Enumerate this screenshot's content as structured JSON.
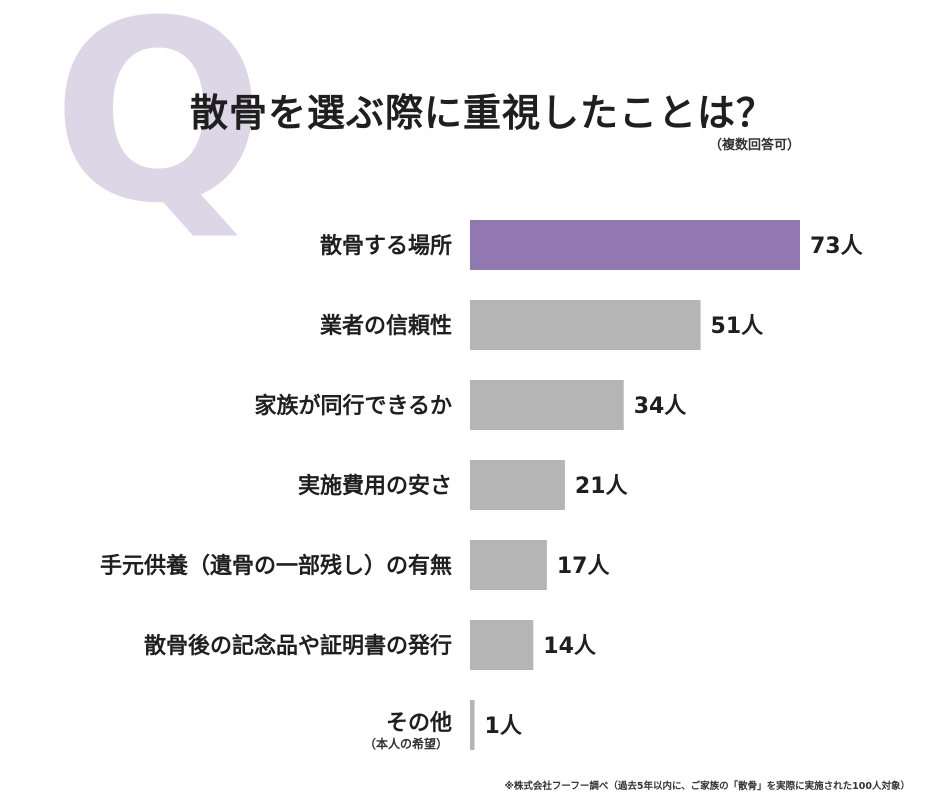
{
  "header": {
    "q_mark": "Q",
    "title": "散骨を選ぶ際に重視したことは？",
    "subtitle": "（複数回答可）"
  },
  "footnote": "※株式会社フーフー調べ（過去5年以内に、ご家族の「散骨」を実際に実施された100人対象）",
  "colors": {
    "highlight": "#9278b1",
    "bar": "#b5b5b5",
    "q_mark": "#dcd6e6"
  },
  "chart_data": {
    "type": "bar",
    "orientation": "horizontal",
    "title": "散骨を選ぶ際に重視したことは？",
    "categories": [
      "散骨する場所",
      "業者の信頼性",
      "家族が同行できるか",
      "実施費用の安さ",
      "手元供養（遺骨の一部残し）の有無",
      "散骨後の記念品や証明書の発行",
      "その他"
    ],
    "category_notes": [
      "",
      "",
      "",
      "",
      "",
      "",
      "（本人の希望）"
    ],
    "values": [
      73,
      51,
      34,
      21,
      17,
      14,
      1
    ],
    "value_labels": [
      "73人",
      "51人",
      "34人",
      "21人",
      "17人",
      "14人",
      "1人"
    ],
    "unit": "人",
    "highlight_index": 0,
    "xlim": [
      0,
      73
    ],
    "grid": false
  }
}
